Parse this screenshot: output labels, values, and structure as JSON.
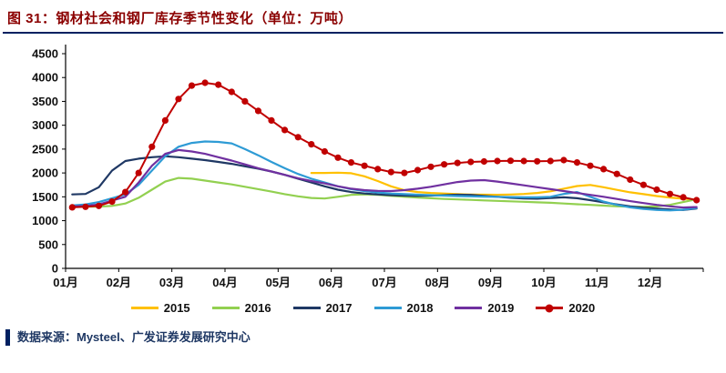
{
  "title": "图 31：钢材社会和钢厂库存季节性变化（单位：万吨）",
  "source": "数据来源：Mysteel、广发证券发展研究中心",
  "colors": {
    "title_text": "#8B0000",
    "title_rule": "#002060",
    "axis": "#000000",
    "source_bar": "#002060",
    "source_text": "#1F3864"
  },
  "chart_data": {
    "type": "line",
    "title": "钢材社会和钢厂库存季节性变化",
    "unit": "万吨",
    "xlabel": "",
    "ylabel": "",
    "ylim": [
      0,
      4500
    ],
    "y_ticks": [
      0,
      500,
      1000,
      1500,
      2000,
      2500,
      3000,
      3500,
      4000,
      4500
    ],
    "grid": false,
    "legend_position": "bottom",
    "x_tick_labels": [
      "01月",
      "02月",
      "03月",
      "04月",
      "05月",
      "06月",
      "07月",
      "08月",
      "09月",
      "10月",
      "11月",
      "12月"
    ],
    "points_per_month": 4,
    "series": [
      {
        "name": "2015",
        "color": "#FFC000",
        "marker": false,
        "values": [
          null,
          null,
          null,
          null,
          null,
          null,
          null,
          null,
          null,
          null,
          null,
          null,
          null,
          null,
          null,
          null,
          null,
          null,
          2000,
          2000,
          2005,
          1995,
          1930,
          1830,
          1720,
          1640,
          1600,
          1580,
          1570,
          1555,
          1548,
          1545,
          1542,
          1548,
          1560,
          1580,
          1615,
          1670,
          1725,
          1748,
          1700,
          1645,
          1595,
          1555,
          1515,
          1485,
          1460,
          1440
        ]
      },
      {
        "name": "2016",
        "color": "#92D050",
        "marker": false,
        "values": [
          1300,
          1295,
          1295,
          1310,
          1360,
          1480,
          1650,
          1820,
          1895,
          1880,
          1840,
          1800,
          1760,
          1710,
          1660,
          1610,
          1555,
          1510,
          1475,
          1465,
          1500,
          1540,
          1550,
          1540,
          1520,
          1500,
          1485,
          1470,
          1455,
          1445,
          1435,
          1425,
          1415,
          1405,
          1395,
          1385,
          1375,
          1360,
          1345,
          1330,
          1315,
          1300,
          1293,
          1290,
          1298,
          1330,
          1390,
          1450
        ]
      },
      {
        "name": "2017",
        "color": "#1F3864",
        "marker": false,
        "values": [
          1550,
          1560,
          1700,
          2050,
          2250,
          2300,
          2330,
          2350,
          2330,
          2300,
          2270,
          2230,
          2190,
          2140,
          2090,
          2030,
          1960,
          1880,
          1800,
          1720,
          1650,
          1600,
          1570,
          1550,
          1535,
          1525,
          1520,
          1525,
          1535,
          1545,
          1540,
          1520,
          1500,
          1480,
          1465,
          1460,
          1475,
          1490,
          1470,
          1430,
          1385,
          1340,
          1300,
          1270,
          1250,
          1235,
          1225,
          1255
        ]
      },
      {
        "name": "2018",
        "color": "#2E9BD5",
        "marker": false,
        "values": [
          1320,
          1340,
          1390,
          1470,
          1550,
          1750,
          2050,
          2350,
          2550,
          2630,
          2660,
          2650,
          2620,
          2500,
          2370,
          2230,
          2100,
          1980,
          1880,
          1800,
          1720,
          1660,
          1620,
          1590,
          1570,
          1555,
          1545,
          1535,
          1525,
          1515,
          1510,
          1505,
          1500,
          1495,
          1490,
          1490,
          1500,
          1560,
          1600,
          1500,
          1400,
          1330,
          1280,
          1245,
          1225,
          1215,
          1230,
          1265
        ]
      },
      {
        "name": "2019",
        "color": "#7030A0",
        "marker": false,
        "values": [
          1300,
          1310,
          1340,
          1420,
          1500,
          1800,
          2150,
          2400,
          2480,
          2450,
          2400,
          2330,
          2260,
          2180,
          2100,
          2030,
          1960,
          1890,
          1830,
          1780,
          1720,
          1670,
          1640,
          1625,
          1620,
          1640,
          1670,
          1710,
          1760,
          1810,
          1840,
          1850,
          1820,
          1780,
          1740,
          1700,
          1660,
          1620,
          1580,
          1540,
          1500,
          1455,
          1410,
          1370,
          1330,
          1300,
          1275,
          1285
        ]
      },
      {
        "name": "2020",
        "color": "#C00000",
        "marker": true,
        "values": [
          1280,
          1290,
          1310,
          1400,
          1600,
          2000,
          2550,
          3100,
          3550,
          3830,
          3890,
          3850,
          3700,
          3500,
          3300,
          3100,
          2900,
          2750,
          2600,
          2450,
          2320,
          2220,
          2150,
          2080,
          2020,
          2000,
          2060,
          2130,
          2180,
          2210,
          2230,
          2240,
          2250,
          2255,
          2250,
          2245,
          2250,
          2270,
          2220,
          2150,
          2080,
          1980,
          1860,
          1750,
          1650,
          1560,
          1490,
          1430
        ]
      }
    ]
  }
}
